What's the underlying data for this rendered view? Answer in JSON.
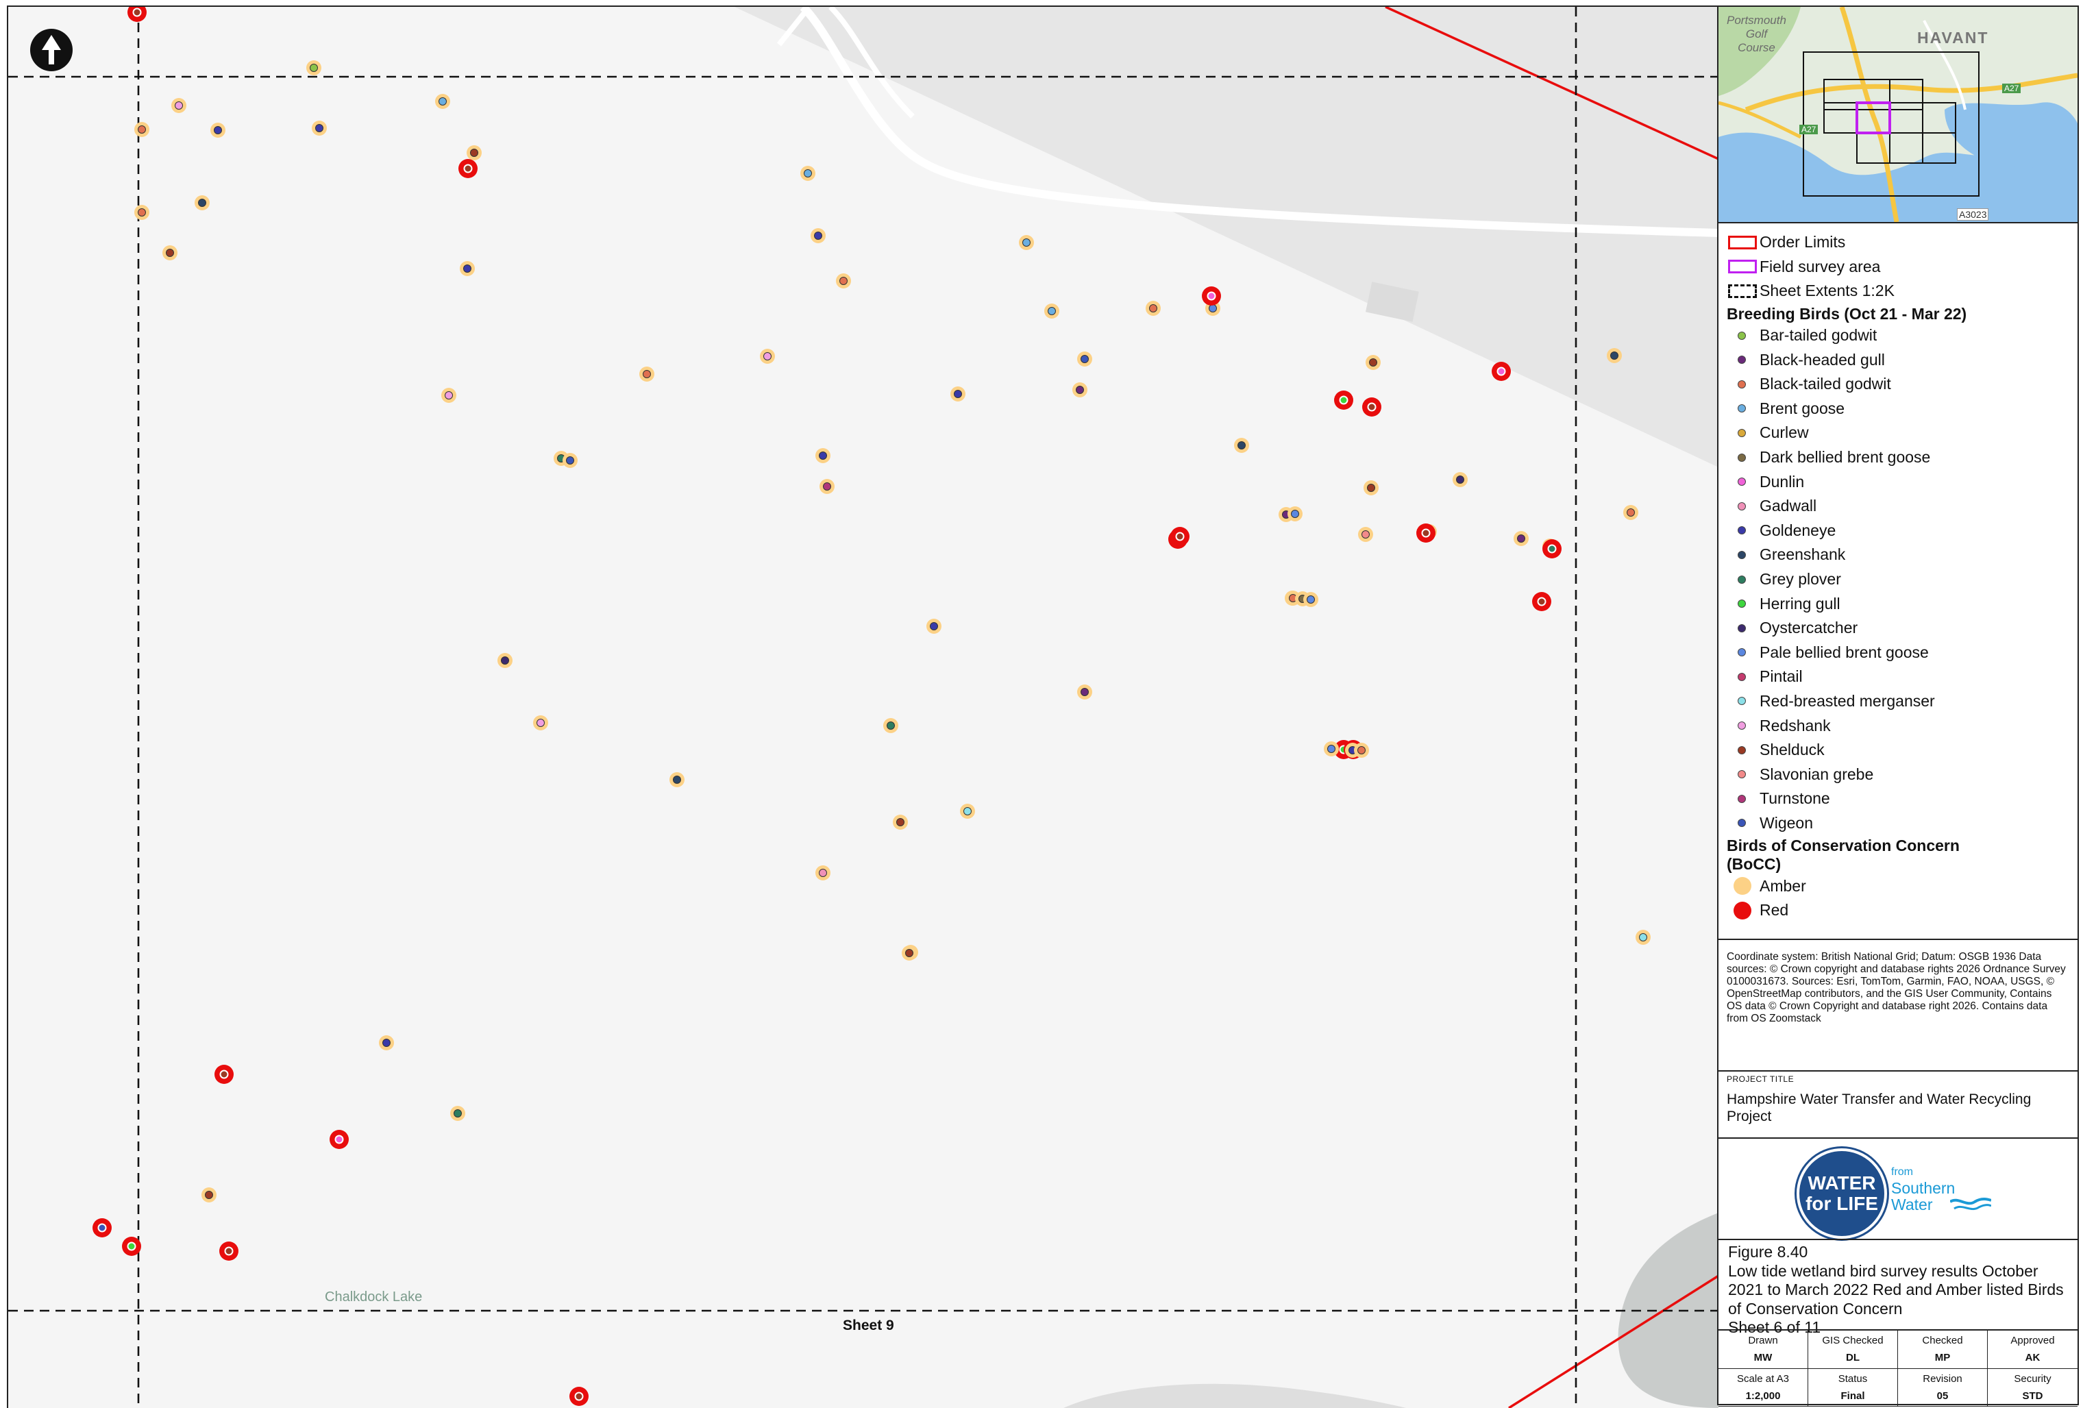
{
  "map": {
    "lake_label": "Chalkdock Lake",
    "sheet_label": "Sheet 9",
    "north_arrow_icon": "north-arrow-icon",
    "bocc_colors": {
      "amber": "#fcd186",
      "red": "#e80d0d"
    },
    "species_colors": {
      "Bar-tailed godwit": "#8bc34a",
      "Black-headed gull": "#6a2a7a",
      "Black-tailed godwit": "#e07050",
      "Brent goose": "#6aaee0",
      "Curlew": "#d9a93a",
      "Dark bellied brent goose": "#7b6a45",
      "Dunlin": "#f062d8",
      "Gadwall": "#f091b8",
      "Goldeneye": "#3a3aa8",
      "Greenshank": "#2c4666",
      "Grey plover": "#2e7d60",
      "Herring gull": "#3ed63e",
      "Oystercatcher": "#3c2a6e",
      "Pale bellied brent goose": "#5b87e0",
      "Pintail": "#c43b6e",
      "Red-breasted merganser": "#8ce0e8",
      "Redshank": "#f09ee0",
      "Shelduck": "#9a3a24",
      "Slavonian grebe": "#f28a8a",
      "Turnstone": "#b0367a",
      "Wigeon": "#3a55b8"
    },
    "observations": [
      {
        "species": "Shelduck",
        "bocc": "Red"
      },
      {
        "species": "Brent goose",
        "bocc": "Amber"
      },
      {
        "species": "Bar-tailed godwit",
        "bocc": "Amber"
      },
      {
        "species": "Redshank",
        "bocc": "Amber"
      },
      {
        "species": "Black-tailed godwit",
        "bocc": "Amber"
      },
      {
        "species": "Goldeneye",
        "bocc": "Amber"
      },
      {
        "species": "Goldeneye",
        "bocc": "Amber"
      },
      {
        "species": "Brent goose",
        "bocc": "Amber"
      },
      {
        "species": "Shelduck",
        "bocc": "Amber"
      },
      {
        "species": "Shelduck",
        "bocc": "Red"
      },
      {
        "species": "Black-tailed godwit",
        "bocc": "Amber"
      },
      {
        "species": "Greenshank",
        "bocc": "Amber"
      },
      {
        "species": "Shelduck",
        "bocc": "Amber"
      },
      {
        "species": "Goldeneye",
        "bocc": "Amber"
      },
      {
        "species": "Brent goose",
        "bocc": "Amber"
      },
      {
        "species": "Goldeneye",
        "bocc": "Amber"
      },
      {
        "species": "Brent goose",
        "bocc": "Amber"
      },
      {
        "species": "Black-tailed godwit",
        "bocc": "Amber"
      },
      {
        "species": "Pale bellied brent goose",
        "bocc": "Amber"
      },
      {
        "species": "Black-tailed godwit",
        "bocc": "Amber"
      },
      {
        "species": "Dunlin",
        "bocc": "Red"
      },
      {
        "species": "Greenshank",
        "bocc": "Amber"
      },
      {
        "species": "Black-tailed godwit",
        "bocc": "Amber"
      },
      {
        "species": "Redshank",
        "bocc": "Amber"
      },
      {
        "species": "Wigeon",
        "bocc": "Amber"
      },
      {
        "species": "Redshank",
        "bocc": "Amber"
      },
      {
        "species": "Goldeneye",
        "bocc": "Amber"
      },
      {
        "species": "Grey plover",
        "bocc": "Amber"
      },
      {
        "species": "Turnstone",
        "bocc": "Amber"
      },
      {
        "species": "Herring gull",
        "bocc": "Red"
      },
      {
        "species": "Shelduck",
        "bocc": "Red"
      },
      {
        "species": "Dunlin",
        "bocc": "Red"
      },
      {
        "species": "Greenshank",
        "bocc": "Amber"
      },
      {
        "species": "Wigeon",
        "bocc": "Amber"
      },
      {
        "species": "Shelduck",
        "bocc": "Amber"
      },
      {
        "species": "Black-headed gull",
        "bocc": "Amber"
      },
      {
        "species": "Pale bellied brent goose",
        "bocc": "Amber"
      },
      {
        "species": "Oystercatcher",
        "bocc": "Amber"
      },
      {
        "species": "Pintail",
        "bocc": "Amber"
      },
      {
        "species": "Curlew",
        "bocc": "Amber"
      },
      {
        "species": "Black-tailed godwit",
        "bocc": "Amber"
      },
      {
        "species": "Shelduck",
        "bocc": "Red"
      },
      {
        "species": "Slavonian grebe",
        "bocc": "Amber"
      },
      {
        "species": "Dunlin",
        "bocc": "Red"
      },
      {
        "species": "Black-headed gull",
        "bocc": "Amber"
      },
      {
        "species": "Red-breasted merganser",
        "bocc": "Amber"
      },
      {
        "species": "Grey plover",
        "bocc": "Red"
      },
      {
        "species": "Black-tailed godwit",
        "bocc": "Amber"
      },
      {
        "species": "Dark bellied brent goose",
        "bocc": "Amber"
      },
      {
        "species": "Pale bellied brent goose",
        "bocc": "Amber"
      },
      {
        "species": "Shelduck",
        "bocc": "Red"
      },
      {
        "species": "Shelduck",
        "bocc": "Amber"
      },
      {
        "species": "Goldeneye",
        "bocc": "Amber"
      },
      {
        "species": "Black-headed gull",
        "bocc": "Amber"
      },
      {
        "species": "Oystercatcher",
        "bocc": "Amber"
      },
      {
        "species": "Redshank",
        "bocc": "Amber"
      },
      {
        "species": "Greenshank",
        "bocc": "Amber"
      },
      {
        "species": "Goldeneye",
        "bocc": "Amber"
      },
      {
        "species": "Black-headed gull",
        "bocc": "Amber"
      },
      {
        "species": "Grey plover",
        "bocc": "Amber"
      },
      {
        "species": "Shelduck",
        "bocc": "Amber"
      },
      {
        "species": "Red-breasted merganser",
        "bocc": "Amber"
      },
      {
        "species": "Gadwall",
        "bocc": "Amber"
      },
      {
        "species": "Herring gull",
        "bocc": "Red"
      },
      {
        "species": "Red-breasted merganser",
        "bocc": "Amber"
      },
      {
        "species": "Goldeneye",
        "bocc": "Amber"
      },
      {
        "species": "Shelduck",
        "bocc": "Red"
      },
      {
        "species": "Dunlin",
        "bocc": "Red"
      },
      {
        "species": "Grey plover",
        "bocc": "Amber"
      },
      {
        "species": "Shelduck",
        "bocc": "Amber"
      },
      {
        "species": "Dunlin",
        "bocc": "Red"
      },
      {
        "species": "Wigeon",
        "bocc": "Red"
      },
      {
        "species": "Herring gull",
        "bocc": "Red"
      },
      {
        "species": "Shelduck",
        "bocc": "Red"
      },
      {
        "species": "Gadwall",
        "bocc": "Amber"
      },
      {
        "species": "Goldeneye",
        "bocc": "Amber"
      },
      {
        "species": "Black-tailed godwit",
        "bocc": "Amber"
      },
      {
        "species": "Shelduck",
        "bocc": "Red"
      },
      {
        "species": "Shelduck",
        "bocc": "Red"
      },
      {
        "species": "Shelduck",
        "bocc": "Amber"
      },
      {
        "species": "Pale bellied brent goose",
        "bocc": "Amber"
      }
    ]
  },
  "inset": {
    "places": [
      {
        "name": "Portsmouth\nGolf\nCourse"
      },
      {
        "name": "HAVANT"
      }
    ],
    "roads": [
      "A3023",
      "A27",
      "A27"
    ]
  },
  "legend": {
    "entries": [
      {
        "label": "Order Limits",
        "symbol": "box",
        "color": "#e80d0d"
      },
      {
        "label": "Field survey area",
        "symbol": "box",
        "color": "#c020f0"
      },
      {
        "label": "Sheet Extents 1:2K",
        "symbol": "dashed-box",
        "color": "#111111"
      }
    ],
    "birds_title": "Breeding Birds (Oct 21 - Mar 22)",
    "species": [
      "Bar-tailed godwit",
      "Black-headed gull",
      "Black-tailed godwit",
      "Brent goose",
      "Curlew",
      "Dark bellied brent goose",
      "Dunlin",
      "Gadwall",
      "Goldeneye",
      "Greenshank",
      "Grey plover",
      "Herring gull",
      "Oystercatcher",
      "Pale bellied brent goose",
      "Pintail",
      "Red-breasted merganser",
      "Redshank",
      "Shelduck",
      "Slavonian grebe",
      "Turnstone",
      "Wigeon"
    ],
    "bocc_title": "Birds of Conservation Concern (BoCC)",
    "bocc": [
      {
        "label": "Amber",
        "color": "#fcd186"
      },
      {
        "label": "Red",
        "color": "#e80d0d"
      }
    ]
  },
  "notes": "Coordinate system: British National Grid; Datum: OSGB 1936 Data sources: © Crown copyright and database rights 2026 Ordnance Survey 0100031673. Sources: Esri, TomTom, Garmin, FAO, NOAA, USGS, © OpenStreetMap contributors, and the GIS User Community, Contains OS data © Crown Copyright and database right 2026. Contains data from OS Zoomstack",
  "project": {
    "caption": "PROJECT TITLE",
    "name": "Hampshire Water Transfer and Water Recycling Project"
  },
  "logo": {
    "line1": "WATER",
    "line2": "for LIFE",
    "from": "from",
    "brand1": "Southern",
    "brand2": "Water"
  },
  "figure": {
    "number": "Figure 8.40",
    "title": "Low tide wetland bird survey results October 2021 to March 2022 Red and Amber listed Birds of Conservation Concern",
    "sheet": "Sheet 6 of 11"
  },
  "meta": [
    {
      "label": "Drawn",
      "value": "MW"
    },
    {
      "label": "GIS Checked",
      "value": "DL"
    },
    {
      "label": "Checked",
      "value": "MP"
    },
    {
      "label": "Approved",
      "value": "AK"
    },
    {
      "label": "Scale at A3",
      "value": "1:2,000"
    },
    {
      "label": "Status",
      "value": "Final"
    },
    {
      "label": "Revision",
      "value": "05"
    },
    {
      "label": "Security",
      "value": "STD"
    }
  ]
}
